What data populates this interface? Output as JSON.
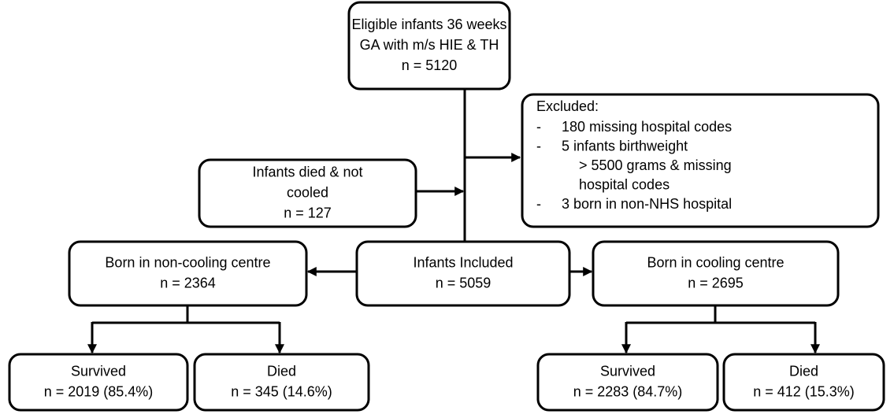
{
  "nodes": [
    {
      "id": "eligible",
      "lines": [
        "Eligible infants 36 weeks",
        "GA with m/s HIE & TH",
        "n = 5120"
      ]
    },
    {
      "id": "died_not_cooled",
      "lines": [
        "Infants died & not",
        "cooled",
        "n = 127"
      ]
    },
    {
      "id": "non_cooling",
      "lines": [
        "Born in non-cooling centre",
        "n = 2364"
      ]
    },
    {
      "id": "included",
      "lines": [
        "Infants Included",
        "n = 5059"
      ]
    },
    {
      "id": "cooling",
      "lines": [
        "Born in cooling centre",
        "n = 2695"
      ]
    },
    {
      "id": "survived_nc",
      "lines": [
        "Survived",
        "n = 2019 (85.4%)"
      ]
    },
    {
      "id": "died_nc",
      "lines": [
        "Died",
        "n = 345 (14.6%)"
      ]
    },
    {
      "id": "survived_c",
      "lines": [
        "Survived",
        "n = 2283 (84.7%)"
      ]
    },
    {
      "id": "died_c",
      "lines": [
        "Died",
        "n = 412 (15.3%)"
      ]
    }
  ],
  "excluded": {
    "heading": "Excluded:",
    "items": [
      {
        "bullet": "-",
        "lines": [
          "180 missing hospital codes"
        ]
      },
      {
        "bullet": "-",
        "lines": [
          "5 infants birthweight",
          "> 5500 grams & missing",
          "hospital codes"
        ]
      },
      {
        "bullet": "-",
        "lines": [
          "3 born in non-NHS hospital"
        ]
      }
    ]
  }
}
